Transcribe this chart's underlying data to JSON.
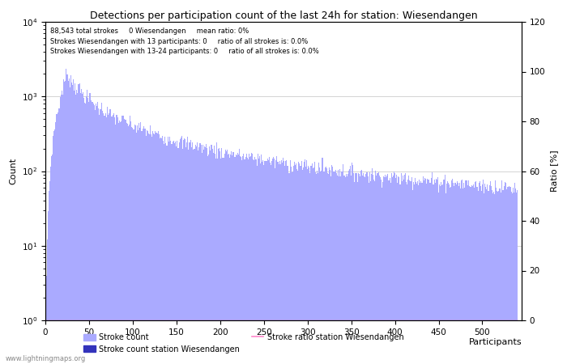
{
  "title": "Detections per participation count of the last 24h for station: Wiesendangen",
  "annotation_lines": [
    "88,543 total strokes     0 Wiesendangen     mean ratio: 0%",
    "Strokes Wiesendangen with 13 participants: 0     ratio of all strokes is: 0.0%",
    "Strokes Wiesendangen with 13-24 participants: 0     ratio of all strokes is: 0.0%"
  ],
  "xlabel": "Participants",
  "ylabel_left": "Count",
  "ylabel_right": "Ratio [%]",
  "bar_color": "#aaaaff",
  "station_bar_color": "#3333bb",
  "ratio_line_color": "#ff88cc",
  "x_max": 540,
  "y_log_min": 1,
  "y_log_max": 10000,
  "y_right_max": 120,
  "y_right_ticks": [
    0,
    20,
    40,
    60,
    80,
    100,
    120
  ],
  "x_ticks": [
    0,
    50,
    100,
    150,
    200,
    250,
    300,
    350,
    400,
    450,
    500
  ],
  "grid_color": "#cccccc",
  "watermark": "www.lightningmaps.org",
  "legend_entries": [
    "Stroke count",
    "Stroke count station Wiesendangen",
    "Stroke ratio station Wiesendangen"
  ],
  "peak_count": 2000,
  "peak_x": 25,
  "noise_sigma": 0.12
}
